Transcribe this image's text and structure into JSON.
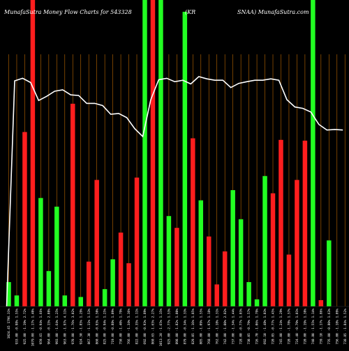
{
  "chart_data": {
    "type": "bar",
    "title": {
      "left": "MunafaSutra  Money Flow  Charts for 543328",
      "mid": "(KR",
      "right": "SNAA) MunafaSutra.com"
    },
    "x_labels": [
      "1024.45 1796.31%",
      "933.00 -0.98% 1.55%",
      "925.00 -1.19% 2.72%",
      "1079.00 -1.17% 1.40%",
      "959.65 -0.94% 1.66%",
      "964.00 -0.15% 2.08%",
      "993.00 -1.64% 1.25%",
      "963.00 -1.97% 4.11%",
      "970.00 -1.76% 3.02%",
      "924.50 -1.85% 1.29%",
      "867.30 -1.11% 1.53%",
      "860.00 -0.93% 1.50%",
      "825.00 -0.94% 1.25%",
      "719.00 -0.88% 1.09%",
      "750.00 -1.40% 1.79%",
      "766.00 -1.34% 5.36%",
      "822.00 -0.35% 1.11%",
      "692.00 -0.93% 1.89%",
      "860.65 -1.65% 2.27%",
      "1013.20 -1.65% 1.35%",
      "925.00 -2.77% 1.53%",
      "898.00 -1.82% 1.00%",
      "879.00 -0.34% 1.33%",
      "829.05 -1.16% 1.85%",
      "805.00 -1.09% 1.55%",
      "768.00 -1.97% 1.18%",
      "762.00 -1.18% 1.31%",
      "742.00 -1.00% 2.82%",
      "737.00 -1.34% 1.44%",
      "728.00 -0.77% 1.03%",
      "730.05 -0.79% 1.57%",
      "726.70 -1.06% 1.79%",
      "692.10 -1.48% 1.03%",
      "720.05 -0.77% 1.45%",
      "745.00 -1.24% 1.29%",
      "720.00 -1.78% 1.57%",
      "724.40 -0.79% 1.01%",
      "720.00 -1.19% 1.38%",
      "740.80 -1.55% 1.14%",
      "759.10 -1.17% 1.86%",
      "776.00 -0.80% 1.63%",
      "756.00 -1.18% 1.09%",
      "738.85 -1.84% 1.52%"
    ],
    "values": [
      0.0794,
      0.0358,
      0.5692,
      1.0,
      0.3538,
      0.1154,
      0.3256,
      0.0358,
      0.6615,
      0.0308,
      0.1462,
      0.4128,
      0.0564,
      0.1538,
      0.241,
      0.141,
      0.4205,
      1.0,
      1.0,
      1.0,
      0.2949,
      0.2564,
      0.9615,
      0.5487,
      0.3462,
      0.2282,
      0.0718,
      0.1795,
      0.3795,
      0.2846,
      0.0794,
      0.0231,
      0.4256,
      0.3692,
      0.5436,
      0.1692,
      0.4128,
      0.541,
      1.0,
      0.0205,
      0.2154,
      0.0,
      0.0
    ],
    "colors": [
      "g",
      "g",
      "r",
      "r",
      "g",
      "g",
      "g",
      "g",
      "r",
      "g",
      "r",
      "r",
      "g",
      "g",
      "r",
      "r",
      "r",
      "g",
      "r",
      "g",
      "g",
      "r",
      "g",
      "r",
      "g",
      "r",
      "r",
      "r",
      "g",
      "g",
      "g",
      "g",
      "g",
      "r",
      "r",
      "r",
      "r",
      "r",
      "g",
      "r",
      "g",
      "g",
      "g"
    ],
    "line": [
      0.0,
      0.688,
      0.697,
      0.682,
      0.618,
      0.633,
      0.651,
      0.656,
      0.638,
      0.636,
      0.608,
      0.608,
      0.6,
      0.569,
      0.572,
      0.557,
      0.518,
      0.49,
      0.621,
      0.692,
      0.697,
      0.685,
      0.69,
      0.677,
      0.703,
      0.695,
      0.69,
      0.69,
      0.664,
      0.679,
      0.685,
      0.69,
      0.69,
      0.695,
      0.69,
      0.621,
      0.595,
      0.59,
      0.577,
      0.533,
      0.513,
      0.515,
      0.513
    ],
    "ylim": [
      0,
      1
    ],
    "palette": {
      "green": "#22ff22",
      "red": "#ff1e1e",
      "grid": "#c06a00",
      "line": "#ffffff",
      "background": "#000000"
    }
  }
}
